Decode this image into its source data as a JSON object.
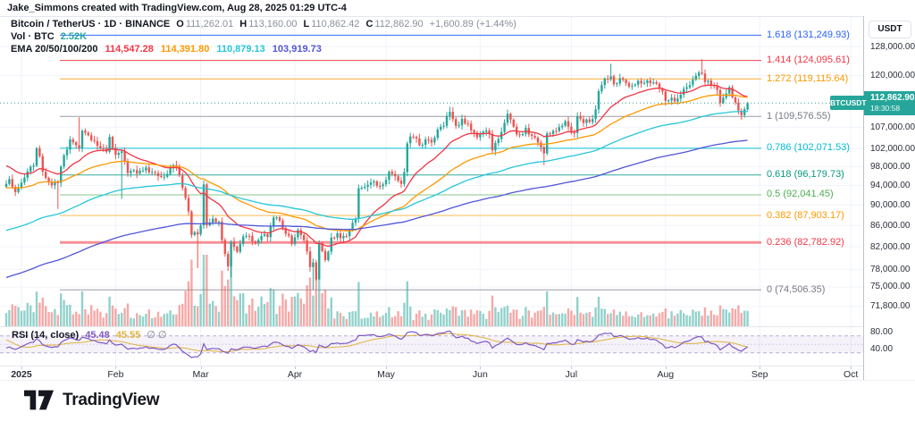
{
  "watermark": "Jake_Simmons created with TradingView.com, Aug 28, 2025 01:29 UTC-4",
  "legend": {
    "title": "Bitcoin / TetherUS · 1D · BINANCE",
    "ohlc": [
      {
        "k": "O",
        "v": "111,262.01"
      },
      {
        "k": "H",
        "v": "113,160.00"
      },
      {
        "k": "L",
        "v": "110,862.42"
      },
      {
        "k": "C",
        "v": "112,862.90"
      }
    ],
    "change": "+1,600.89 (+1.44%)",
    "vol_label": "Vol · BTC",
    "vol_value": "2.52K",
    "ema_label": "EMA 20/50/100/200",
    "ema_values": [
      "114,547.28",
      "114,391.80",
      "110,879.13",
      "103,919.73"
    ]
  },
  "rsi_legend": {
    "label": "RSI (14, close)",
    "value_rsi": "45.48",
    "value_ma": "45.55",
    "hidden": "∅ ∅"
  },
  "price_axis": {
    "currency": "USDT",
    "ticks": [
      {
        "label": "128,000.00",
        "value": 128000
      },
      {
        "label": "120,000.00",
        "value": 120000
      },
      {
        "label": "107,000.00",
        "value": 107000
      },
      {
        "label": "102,000.00",
        "value": 102000
      },
      {
        "label": "98,000.00",
        "value": 98000
      },
      {
        "label": "94,000.00",
        "value": 94000
      },
      {
        "label": "90,000.00",
        "value": 90000
      },
      {
        "label": "86,000.00",
        "value": 86000
      },
      {
        "label": "82,000.00",
        "value": 82000
      },
      {
        "label": "78,000.00",
        "value": 78000
      },
      {
        "label": "75,000.00",
        "value": 75000
      },
      {
        "label": "71,800.00",
        "value": 71800
      }
    ]
  },
  "rsi_axis_ticks": [
    {
      "label": "80.00",
      "value": 80
    },
    {
      "label": "40.00",
      "value": 40
    }
  ],
  "price_badge": {
    "tag": "BTCUSDT",
    "price": "112,862.90",
    "countdown": "18:30:58",
    "value": 112862.9
  },
  "time_axis": [
    {
      "label": "2025",
      "day": 0,
      "bold": true
    },
    {
      "label": "Feb",
      "day": 31
    },
    {
      "label": "Mar",
      "day": 59
    },
    {
      "label": "Apr",
      "day": 90
    },
    {
      "label": "May",
      "day": 120
    },
    {
      "label": "Jun",
      "day": 151
    },
    {
      "label": "Jul",
      "day": 181
    },
    {
      "label": "Aug",
      "day": 212
    },
    {
      "label": "Sep",
      "day": 243
    },
    {
      "label": "Oct",
      "day": 273
    }
  ],
  "footer": {
    "brand": "TradingView"
  },
  "colors": {
    "up": "#26a69a",
    "down": "#ef5350",
    "grid": "#f0f3fa",
    "separator": "#e4e7ee",
    "badge": "#26a69a",
    "current_line": "#2a9d95",
    "vol_up": "rgba(38,166,154,0.5)",
    "vol_down": "rgba(239,83,80,0.5)"
  },
  "chart_data": {
    "type": "candlestick",
    "symbol": "BTCUSDT",
    "exchange": "BINANCE",
    "interval": "1D",
    "price_scale": "log",
    "panes": [
      "price+volume",
      "rsi"
    ],
    "day0_date": "2025-01-01",
    "visible_range_days": [
      -5,
      239
    ],
    "last_candle": {
      "open": 111262.01,
      "high": 113160.0,
      "low": 110862.42,
      "close": 112862.9,
      "change": 1600.89,
      "change_pct": 1.44
    },
    "anchors": [
      [
        -200,
        63500
      ],
      [
        -180,
        58200
      ],
      [
        -160,
        60800
      ],
      [
        -145,
        64500
      ],
      [
        -130,
        59000
      ],
      [
        -115,
        66000
      ],
      [
        -100,
        62800
      ],
      [
        -85,
        61000
      ],
      [
        -70,
        67000
      ],
      [
        -60,
        72700
      ],
      [
        -57,
        69400
      ],
      [
        -55,
        76000
      ],
      [
        -50,
        88000
      ],
      [
        -45,
        91000
      ],
      [
        -40,
        90400
      ],
      [
        -35,
        98000
      ],
      [
        -30,
        95900
      ],
      [
        -25,
        98000
      ],
      [
        -20,
        104000
      ],
      [
        -15,
        106100
      ],
      [
        -12,
        100400
      ],
      [
        -9,
        94200
      ],
      [
        -7,
        97400
      ],
      [
        -6,
        93700
      ],
      [
        -5,
        94300
      ],
      [
        -4,
        95300
      ],
      [
        -3,
        93700
      ],
      [
        -2,
        92600
      ],
      [
        -1,
        93400
      ],
      [
        0,
        94600
      ],
      [
        2,
        96950
      ],
      [
        4,
        98200
      ],
      [
        5,
        102100
      ],
      [
        7,
        96900
      ],
      [
        9,
        94700
      ],
      [
        12,
        94500,
        null,
        89200
      ],
      [
        14,
        100500
      ],
      [
        16,
        104100
      ],
      [
        19,
        102100,
        109350,
        null
      ],
      [
        20,
        106150
      ],
      [
        22,
        105100
      ],
      [
        24,
        103700
      ],
      [
        26,
        102100
      ],
      [
        28,
        101300
      ],
      [
        29,
        104700
      ],
      [
        31,
        100600
      ],
      [
        33,
        101400,
        null,
        91200
      ],
      [
        35,
        96600
      ],
      [
        38,
        96500
      ],
      [
        41,
        97800
      ],
      [
        44,
        96600
      ],
      [
        47,
        95800
      ],
      [
        50,
        98300
      ],
      [
        52,
        96100
      ],
      [
        54,
        91400
      ],
      [
        55,
        88700
      ],
      [
        56,
        84200
      ],
      [
        57,
        84700
      ],
      [
        58,
        84300,
        null,
        78200
      ],
      [
        59,
        86000
      ],
      [
        60,
        94200,
        95000,
        null
      ],
      [
        61,
        86000
      ],
      [
        63,
        87300
      ],
      [
        65,
        86700
      ],
      [
        67,
        80700
      ],
      [
        68,
        78500
      ],
      [
        69,
        82900,
        null,
        76600
      ],
      [
        71,
        81100
      ],
      [
        73,
        83900
      ],
      [
        75,
        84000
      ],
      [
        77,
        82600
      ],
      [
        79,
        84000
      ],
      [
        81,
        83800
      ],
      [
        83,
        87500
      ],
      [
        85,
        86900
      ],
      [
        87,
        84400
      ],
      [
        89,
        82500
      ],
      [
        91,
        85100
      ],
      [
        93,
        83200
      ],
      [
        95,
        78400
      ],
      [
        96,
        79200,
        null,
        74508
      ],
      [
        97,
        76300
      ],
      [
        98,
        82600,
        null,
        76200
      ],
      [
        100,
        79600
      ],
      [
        102,
        83700
      ],
      [
        104,
        84500
      ],
      [
        106,
        84000
      ],
      [
        108,
        85100
      ],
      [
        110,
        87300
      ],
      [
        111,
        93400
      ],
      [
        113,
        93700
      ],
      [
        115,
        94600
      ],
      [
        117,
        93900
      ],
      [
        119,
        94200
      ],
      [
        121,
        96900
      ],
      [
        123,
        95900
      ],
      [
        125,
        94300
      ],
      [
        126,
        96800
      ],
      [
        127,
        103200
      ],
      [
        129,
        104700
      ],
      [
        131,
        102800
      ],
      [
        133,
        104100
      ],
      [
        135,
        103400
      ],
      [
        137,
        106400
      ],
      [
        139,
        107300
      ],
      [
        140,
        109700
      ],
      [
        141,
        110700,
        111980,
        null
      ],
      [
        143,
        107300
      ],
      [
        145,
        109000
      ],
      [
        147,
        107800
      ],
      [
        149,
        105700
      ],
      [
        150,
        104600
      ],
      [
        152,
        105900
      ],
      [
        154,
        105400
      ],
      [
        155,
        101600
      ],
      [
        157,
        104200
      ],
      [
        158,
        105800
      ],
      [
        160,
        110200
      ],
      [
        162,
        107100
      ],
      [
        164,
        105100
      ],
      [
        166,
        106800
      ],
      [
        168,
        104900
      ],
      [
        170,
        103400
      ],
      [
        172,
        100900,
        null,
        98300
      ],
      [
        173,
        105500
      ],
      [
        175,
        106100
      ],
      [
        177,
        107000
      ],
      [
        179,
        108400
      ],
      [
        180,
        107100
      ],
      [
        182,
        105600
      ],
      [
        183,
        109600
      ],
      [
        185,
        108000
      ],
      [
        187,
        108200
      ],
      [
        188,
        108900
      ],
      [
        189,
        111300
      ],
      [
        190,
        115900
      ],
      [
        191,
        117500
      ],
      [
        193,
        119000
      ],
      [
        194,
        119800,
        123218,
        null
      ],
      [
        195,
        117700
      ],
      [
        197,
        119300
      ],
      [
        199,
        118000
      ],
      [
        201,
        117300
      ],
      [
        203,
        118600
      ],
      [
        205,
        118000
      ],
      [
        207,
        117900
      ],
      [
        209,
        117800
      ],
      [
        211,
        115800
      ],
      [
        212,
        113400
      ],
      [
        214,
        114200
      ],
      [
        216,
        114000
      ],
      [
        217,
        115000
      ],
      [
        219,
        116900
      ],
      [
        221,
        118900
      ],
      [
        223,
        120800
      ],
      [
        224,
        120500,
        124474,
        null
      ],
      [
        225,
        118300
      ],
      [
        227,
        117400
      ],
      [
        229,
        116200
      ],
      [
        230,
        112900
      ],
      [
        231,
        114200
      ],
      [
        233,
        116900
      ],
      [
        235,
        113000
      ],
      [
        237,
        109900,
        null,
        108700
      ],
      [
        238,
        111300
      ],
      [
        239,
        112862.9,
        113160,
        110862.42
      ]
    ],
    "emas": [
      {
        "period": 20,
        "color": "#f23645",
        "value": "114,547.28"
      },
      {
        "period": 50,
        "color": "#ff9800",
        "value": "114,391.80"
      },
      {
        "period": 100,
        "color": "#26c6da",
        "value": "110,879.13"
      },
      {
        "period": 200,
        "color": "#5156d8",
        "value": "103,919.73"
      }
    ],
    "rsi": {
      "period": 14,
      "color": "#7e57c2",
      "ma_period": 14,
      "ma_color": "#dfb23c",
      "upper": 70,
      "middle": 50,
      "lower": 30,
      "last": 45.48,
      "ma_last": 45.55
    },
    "volume": {
      "last_label": "2.52K"
    },
    "fib_levels": [
      {
        "ratio": 1.618,
        "price": 131249.93,
        "label": "1.618 (131,249.93)",
        "color": "#2962ff",
        "line_color": "#2962ff",
        "width": 1
      },
      {
        "ratio": 1.414,
        "price": 124095.61,
        "label": "1.414 (124,095.61)",
        "color": "#f23645",
        "line_color": "#f23645",
        "width": 1
      },
      {
        "ratio": 1.272,
        "price": 119115.64,
        "label": "1.272 (119,115.64)",
        "color": "#ff9800",
        "line_color": "#ffa726",
        "width": 1
      },
      {
        "ratio": 1,
        "price": 109576.55,
        "label": "1 (109,576.55)",
        "color": "#787b86",
        "line_color": "#9598a1",
        "width": 1
      },
      {
        "ratio": 0.786,
        "price": 102071.53,
        "label": "0.786 (102,071.53)",
        "color": "#00bcd4",
        "line_color": "#00bcd4",
        "width": 1
      },
      {
        "ratio": 0.618,
        "price": 96179.73,
        "label": "0.618 (96,179.73)",
        "color": "#089981",
        "line_color": "#26a69a",
        "width": 1
      },
      {
        "ratio": 0.5,
        "price": 92041.45,
        "label": "0.5 (92,041.45)",
        "color": "#4caf50",
        "line_color": "#81c784",
        "width": 1
      },
      {
        "ratio": 0.382,
        "price": 87903.17,
        "label": "0.382 (87,903.17)",
        "color": "#ff9800",
        "line_color": "#ffb74d",
        "width": 1
      },
      {
        "ratio": 0.236,
        "price": 82782.92,
        "label": "0.236 (82,782.92)",
        "color": "#f23645",
        "line_color": "#f58b92",
        "width": 3
      },
      {
        "ratio": 0,
        "price": 74506.35,
        "label": "0 (74,506.35)",
        "color": "#787b86",
        "line_color": "#9598a1",
        "width": 1
      }
    ]
  }
}
